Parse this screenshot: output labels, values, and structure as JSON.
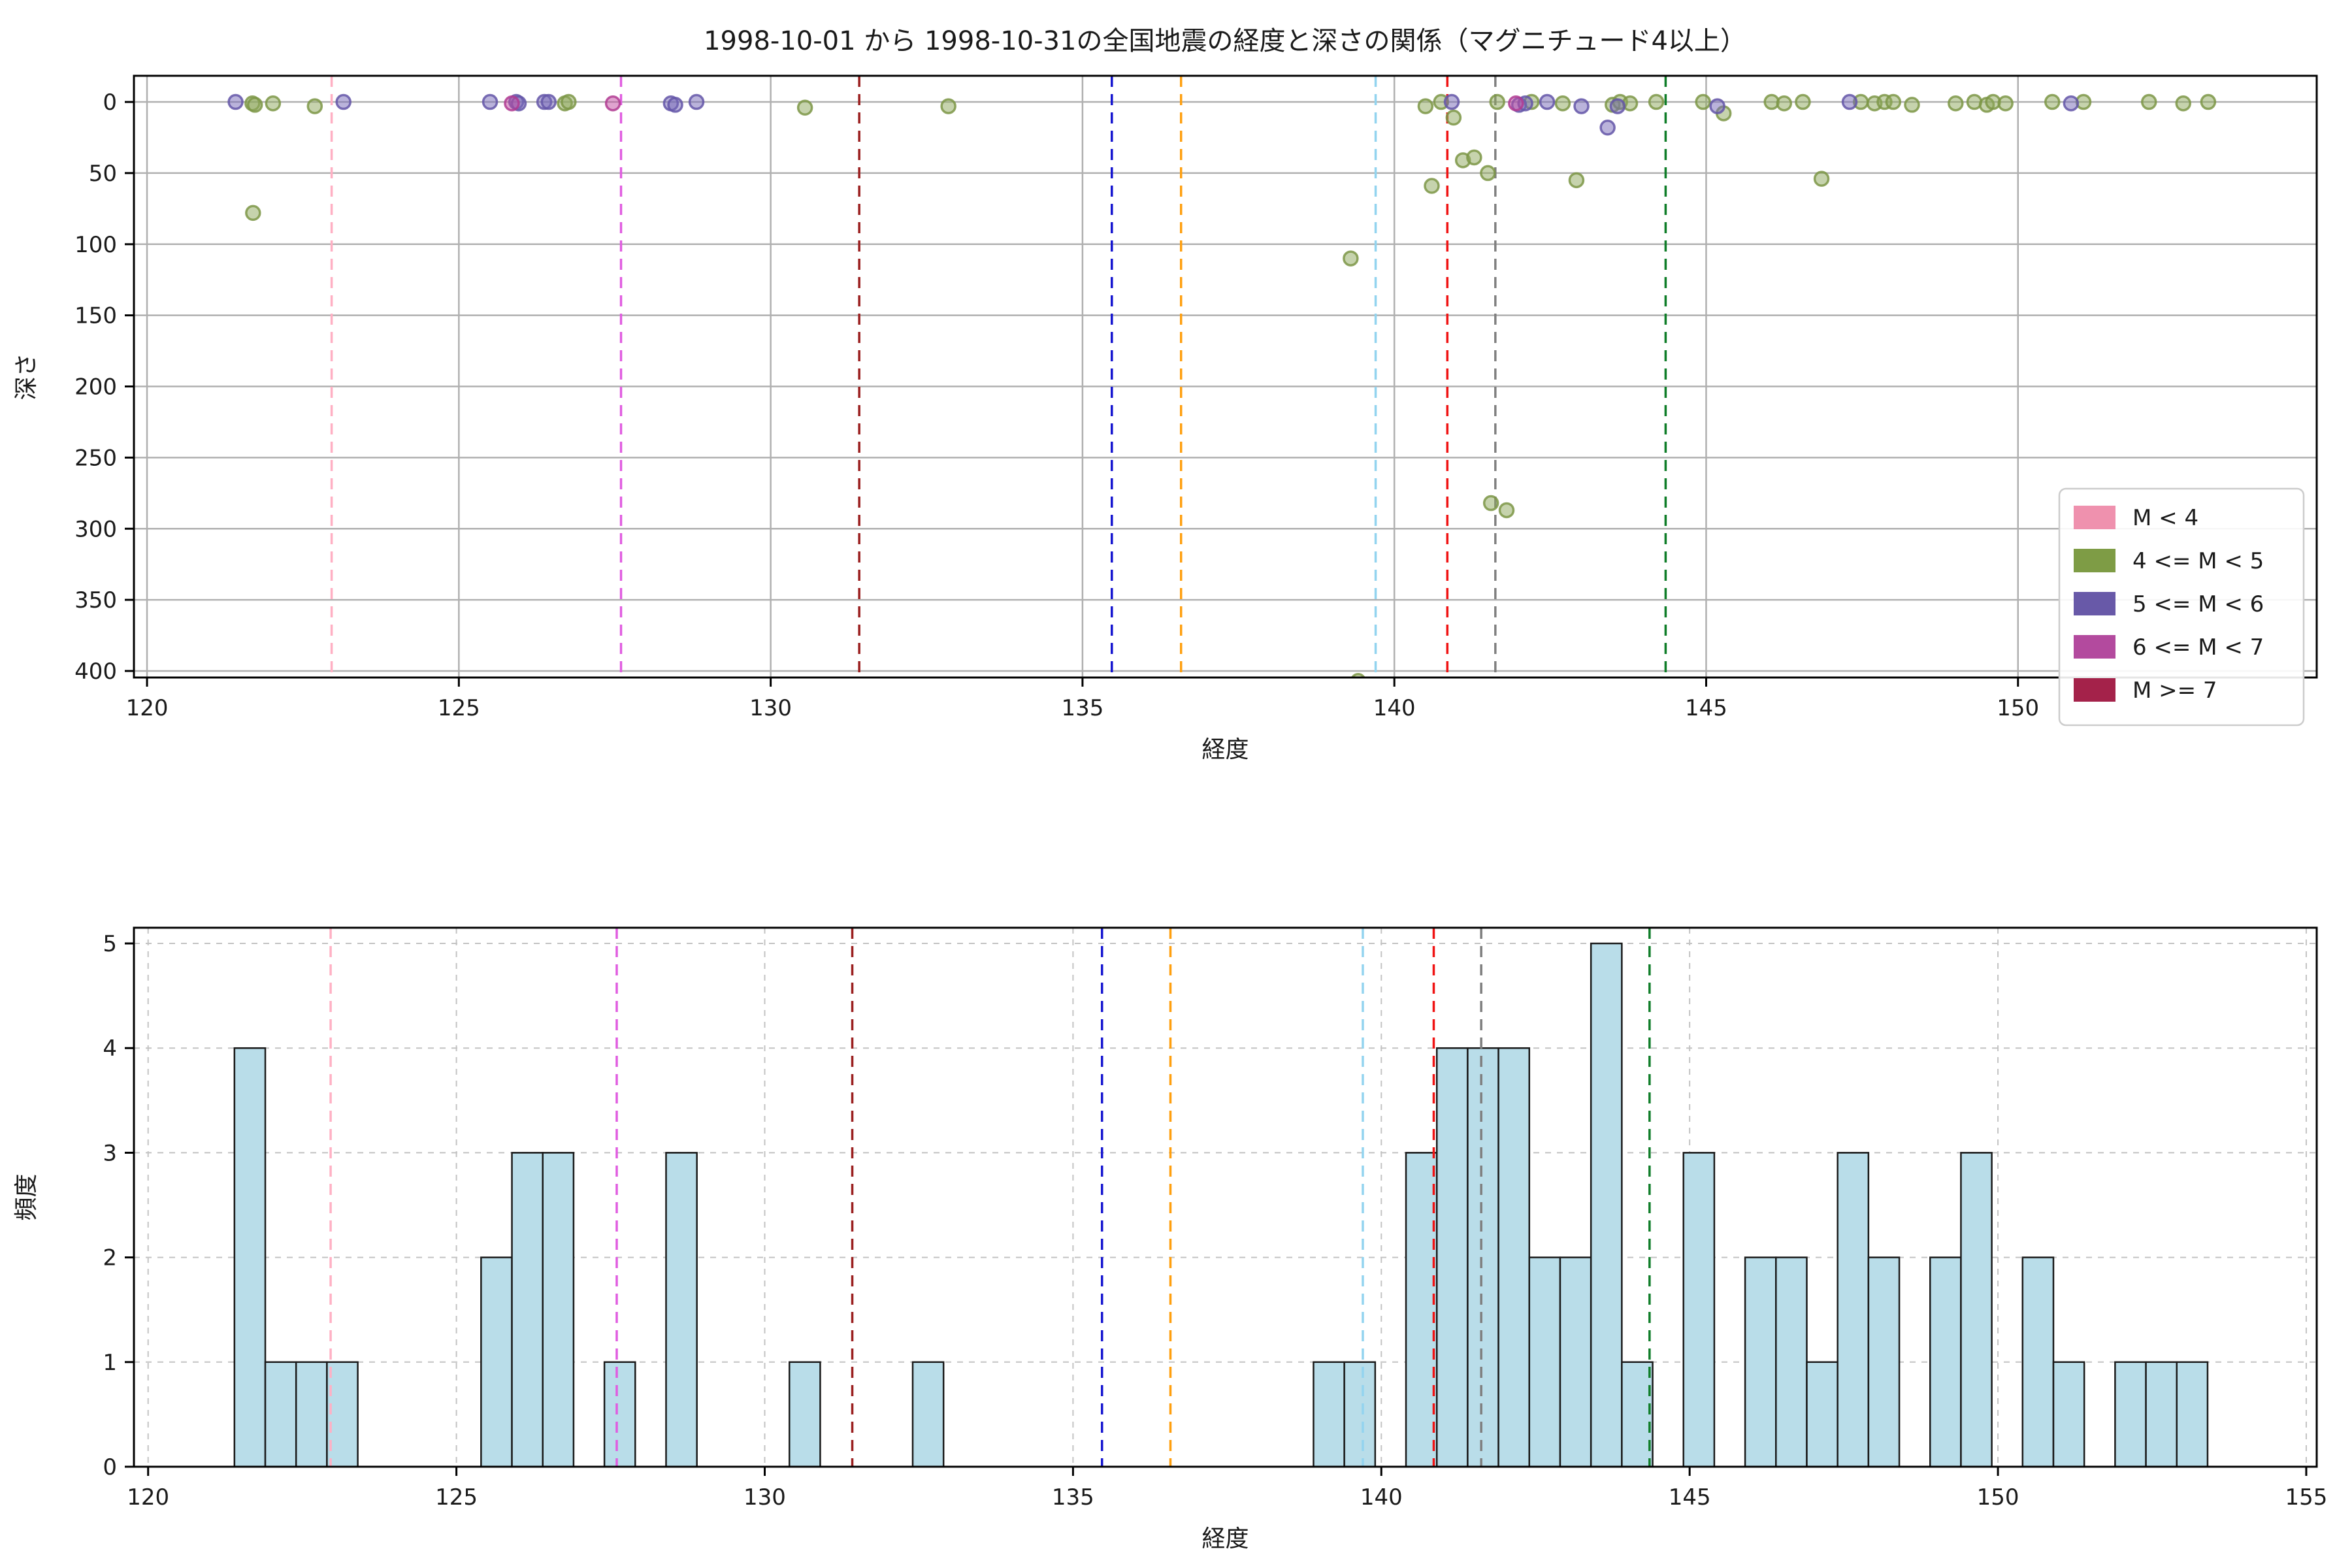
{
  "figure": {
    "title": "1998-10-01 から 1998-10-31の全国地震の経度と深さの関係（マグニチュード4以上）",
    "background": "#ffffff"
  },
  "colors": {
    "text": "#1a1a1a",
    "spine": "#000000",
    "grid_solid": "#b0b0b0",
    "grid_dashed": "#c3c3c3",
    "hist_fill": "#b9dde9",
    "hist_edge": "#1a1a1a"
  },
  "legend": {
    "position": "lower right",
    "entries": [
      {
        "label": "M < 4",
        "color": "#ef91ae"
      },
      {
        "label": "4 <= M < 5",
        "color": "#7e9c45"
      },
      {
        "label": "5 <= M < 6",
        "color": "#6859a8"
      },
      {
        "label": "6 <= M < 7",
        "color": "#b34a9e"
      },
      {
        "label": "M >= 7",
        "color": "#a4224a"
      }
    ]
  },
  "reference_lines": [
    {
      "x": 122.96,
      "color": "#ffb0c4"
    },
    {
      "x": 127.6,
      "color": "#e05ce0"
    },
    {
      "x": 131.42,
      "color": "#9a1f1f"
    },
    {
      "x": 135.47,
      "color": "#1515d0"
    },
    {
      "x": 136.58,
      "color": "#ff9f0e"
    },
    {
      "x": 139.7,
      "color": "#93d4ef"
    },
    {
      "x": 140.85,
      "color": "#f01414"
    },
    {
      "x": 141.62,
      "color": "#7f7f7f"
    },
    {
      "x": 144.35,
      "color": "#0f7d28"
    }
  ],
  "chart_data": [
    {
      "type": "scatter",
      "xlabel": "経度",
      "ylabel": "深さ",
      "xlim": [
        119.79,
        154.79
      ],
      "ylim": [
        -18.4,
        404.6
      ],
      "y_inverted": true,
      "grid": "solid",
      "x_ticks": [
        120,
        125,
        130,
        135,
        140,
        145,
        150
      ],
      "y_ticks": [
        0,
        50,
        100,
        150,
        200,
        250,
        300,
        350,
        400
      ],
      "marker_alpha": 0.5,
      "series": [
        {
          "name": "4 <= M < 5",
          "fill": "#8ea85c",
          "edge": "#7d9747",
          "points": [
            [
              121.69,
              1
            ],
            [
              121.73,
              2
            ],
            [
              121.7,
              78
            ],
            [
              122.02,
              1
            ],
            [
              122.69,
              3
            ],
            [
              126.7,
              1
            ],
            [
              126.76,
              0
            ],
            [
              130.55,
              4
            ],
            [
              132.85,
              3
            ],
            [
              139.3,
              110
            ],
            [
              139.42,
              407
            ],
            [
              140.5,
              3
            ],
            [
              140.6,
              59
            ],
            [
              140.75,
              0
            ],
            [
              140.95,
              11
            ],
            [
              141.1,
              41
            ],
            [
              141.28,
              39
            ],
            [
              141.5,
              50
            ],
            [
              141.55,
              282
            ],
            [
              141.65,
              0
            ],
            [
              141.8,
              287
            ],
            [
              142.2,
              0
            ],
            [
              142.7,
              1
            ],
            [
              142.92,
              55
            ],
            [
              143.5,
              2
            ],
            [
              143.62,
              0
            ],
            [
              143.78,
              1
            ],
            [
              144.2,
              0
            ],
            [
              144.95,
              0
            ],
            [
              145.28,
              8
            ],
            [
              146.05,
              0
            ],
            [
              146.25,
              1
            ],
            [
              146.55,
              0
            ],
            [
              146.85,
              54
            ],
            [
              147.48,
              0
            ],
            [
              147.7,
              1
            ],
            [
              147.86,
              0
            ],
            [
              148.0,
              0
            ],
            [
              148.3,
              2
            ],
            [
              149.0,
              1
            ],
            [
              149.3,
              0
            ],
            [
              149.5,
              2
            ],
            [
              149.6,
              0
            ],
            [
              149.8,
              1
            ],
            [
              150.55,
              0
            ],
            [
              151.05,
              0
            ],
            [
              152.1,
              0
            ],
            [
              152.65,
              1
            ],
            [
              153.05,
              0
            ]
          ]
        },
        {
          "name": "5 <= M < 6",
          "fill": "#7667b8",
          "edge": "#6456a8",
          "points": [
            [
              121.42,
              0
            ],
            [
              123.15,
              0
            ],
            [
              125.5,
              0
            ],
            [
              125.92,
              0
            ],
            [
              125.96,
              1
            ],
            [
              126.37,
              0
            ],
            [
              126.44,
              0
            ],
            [
              128.4,
              1
            ],
            [
              128.47,
              2
            ],
            [
              128.81,
              0
            ],
            [
              140.92,
              0
            ],
            [
              142.0,
              2
            ],
            [
              142.1,
              1
            ],
            [
              142.45,
              0
            ],
            [
              143.0,
              3
            ],
            [
              143.42,
              18
            ],
            [
              143.58,
              3
            ],
            [
              145.18,
              3
            ],
            [
              147.3,
              0
            ],
            [
              150.85,
              1
            ]
          ]
        },
        {
          "name": "6 <= M < 7",
          "fill": "#c2479f",
          "edge": "#b03b92",
          "points": [
            [
              125.85,
              1
            ],
            [
              127.47,
              1
            ],
            [
              141.95,
              1
            ]
          ]
        }
      ]
    },
    {
      "type": "bar",
      "xlabel": "経度",
      "ylabel": "頻度",
      "xlim": [
        119.77,
        155.17
      ],
      "ylim": [
        0,
        5.15
      ],
      "grid": "dashed",
      "x_ticks": [
        120,
        125,
        130,
        135,
        140,
        145,
        150,
        155
      ],
      "y_ticks": [
        0,
        1,
        2,
        3,
        4,
        5
      ],
      "bin_width": 0.5,
      "bars": [
        {
          "x": 121.4,
          "h": 4
        },
        {
          "x": 121.9,
          "h": 1
        },
        {
          "x": 122.4,
          "h": 1
        },
        {
          "x": 122.9,
          "h": 1
        },
        {
          "x": 125.4,
          "h": 2
        },
        {
          "x": 125.9,
          "h": 3
        },
        {
          "x": 126.4,
          "h": 3
        },
        {
          "x": 127.4,
          "h": 1
        },
        {
          "x": 128.4,
          "h": 3
        },
        {
          "x": 130.4,
          "h": 1
        },
        {
          "x": 132.4,
          "h": 1
        },
        {
          "x": 138.9,
          "h": 1
        },
        {
          "x": 139.4,
          "h": 1
        },
        {
          "x": 140.4,
          "h": 3
        },
        {
          "x": 140.9,
          "h": 4
        },
        {
          "x": 141.4,
          "h": 4
        },
        {
          "x": 141.9,
          "h": 4
        },
        {
          "x": 142.4,
          "h": 2
        },
        {
          "x": 142.9,
          "h": 2
        },
        {
          "x": 143.4,
          "h": 5
        },
        {
          "x": 143.9,
          "h": 1
        },
        {
          "x": 144.9,
          "h": 3
        },
        {
          "x": 145.9,
          "h": 2
        },
        {
          "x": 146.4,
          "h": 2
        },
        {
          "x": 146.9,
          "h": 1
        },
        {
          "x": 147.4,
          "h": 3
        },
        {
          "x": 147.9,
          "h": 2
        },
        {
          "x": 148.9,
          "h": 2
        },
        {
          "x": 149.4,
          "h": 3
        },
        {
          "x": 150.4,
          "h": 2
        },
        {
          "x": 150.9,
          "h": 1
        },
        {
          "x": 151.9,
          "h": 1
        },
        {
          "x": 152.4,
          "h": 1
        },
        {
          "x": 152.9,
          "h": 1
        }
      ]
    }
  ]
}
